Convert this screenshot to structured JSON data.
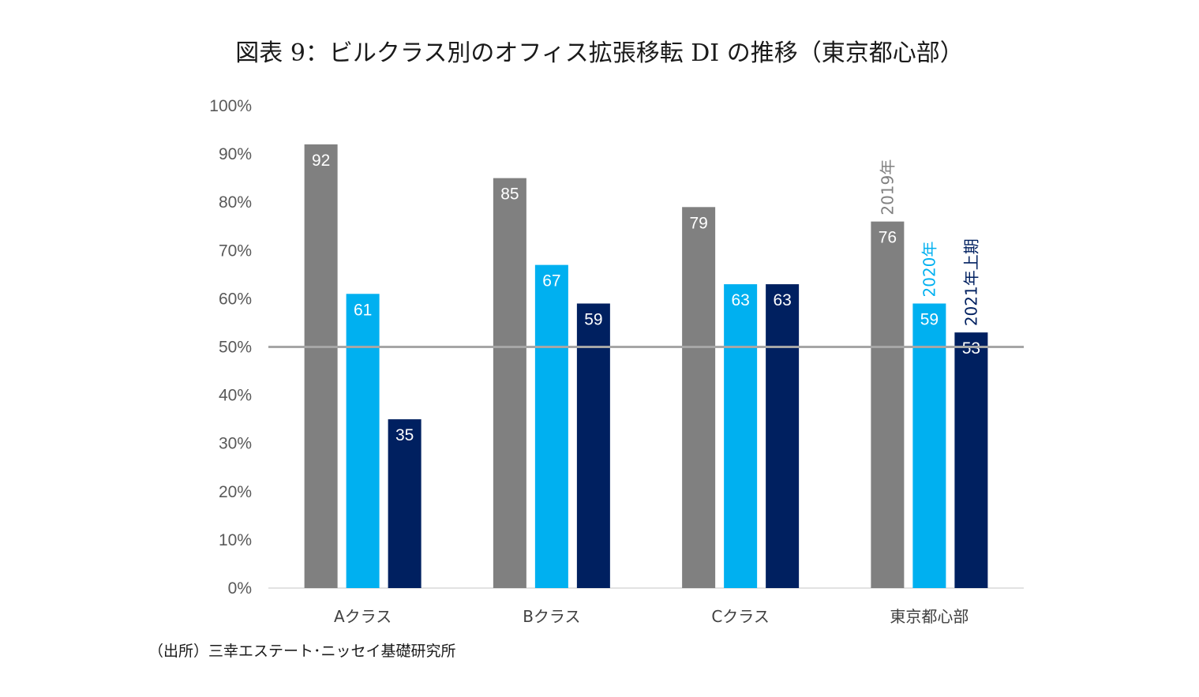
{
  "title": "図表 9：ビルクラス別のオフィス拡張移転 DI の推移（東京都心部）",
  "source": "（出所）三幸エステート･ニッセイ基礎研究所",
  "chart_data": {
    "type": "bar",
    "title": "図表 9：ビルクラス別のオフィス拡張移転 DI の推移（東京都心部）",
    "categories": [
      "Aクラス",
      "Bクラス",
      "Cクラス",
      "東京都心部"
    ],
    "series": [
      {
        "name": "2019年",
        "color": "#808080",
        "values": [
          92,
          85,
          79,
          76
        ]
      },
      {
        "name": "2020年",
        "color": "#00b0f0",
        "values": [
          61,
          67,
          63,
          59
        ]
      },
      {
        "name": "2021年上期",
        "color": "#002060",
        "values": [
          35,
          59,
          63,
          53
        ]
      }
    ],
    "yticks": [
      "0%",
      "10%",
      "20%",
      "30%",
      "40%",
      "50%",
      "60%",
      "70%",
      "80%",
      "90%",
      "100%"
    ],
    "ylim": [
      0,
      100
    ],
    "reference_line": 50,
    "xlabel": "",
    "ylabel": "",
    "legend": "series labels written vertically above the 東京都心部 bars"
  }
}
